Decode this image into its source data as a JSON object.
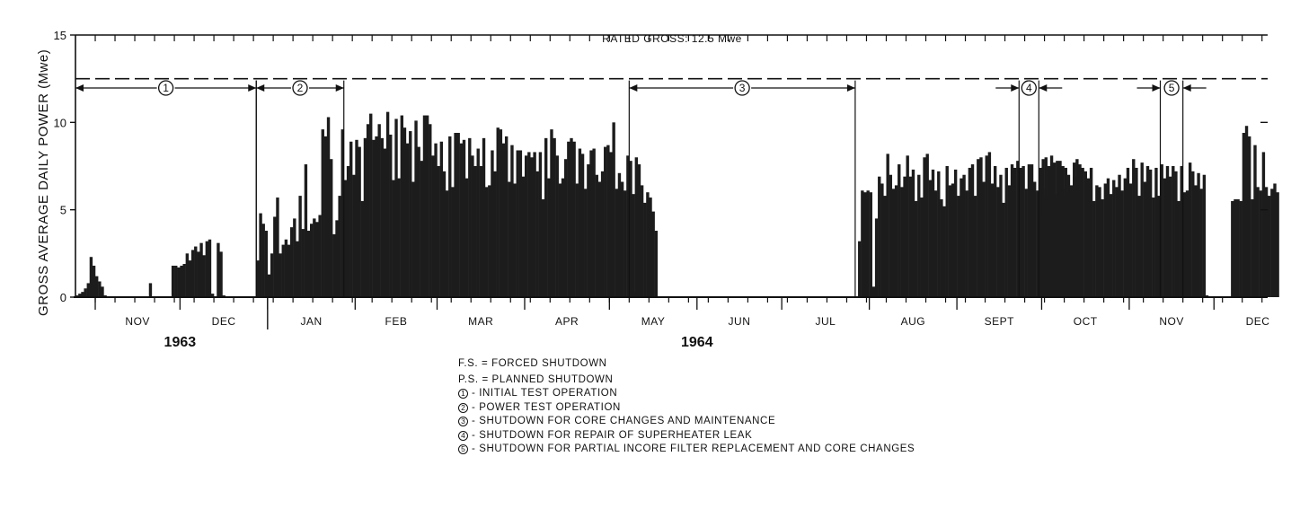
{
  "chart_data": {
    "type": "bar",
    "ylabel": "GROSS AVERAGE DAILY POWER (Mwe)",
    "ylim": [
      0,
      15
    ],
    "yticks": [
      0,
      5,
      10,
      15
    ],
    "rated_line": {
      "value": 12.5,
      "label": "RATED GROSS: 12.5 Mwe"
    },
    "months": [
      {
        "label": "NOV",
        "start_day": 0,
        "days": 30
      },
      {
        "label": "DEC",
        "start_day": 30,
        "days": 31
      },
      {
        "label": "JAN",
        "start_day": 61,
        "days": 31
      },
      {
        "label": "FEB",
        "start_day": 92,
        "days": 29
      },
      {
        "label": "MAR",
        "start_day": 121,
        "days": 31
      },
      {
        "label": "APR",
        "start_day": 152,
        "days": 30
      },
      {
        "label": "MAY",
        "start_day": 182,
        "days": 31
      },
      {
        "label": "JUN",
        "start_day": 213,
        "days": 30
      },
      {
        "label": "JUL",
        "start_day": 243,
        "days": 31
      },
      {
        "label": "AUG",
        "start_day": 274,
        "days": 31
      },
      {
        "label": "SEPT",
        "start_day": 305,
        "days": 30
      },
      {
        "label": "OCT",
        "start_day": 335,
        "days": 31
      },
      {
        "label": "NOV",
        "start_day": 366,
        "days": 30
      },
      {
        "label": "DEC",
        "start_day": 396,
        "days": 31
      }
    ],
    "years": [
      {
        "label": "1963",
        "day": 30
      },
      {
        "label": "1964",
        "day": 213
      }
    ],
    "x_start_day": -7,
    "x_end_day": 415,
    "periods": [
      {
        "label": "1",
        "start_day": -7,
        "end_day": 57
      },
      {
        "label": "2",
        "start_day": 57,
        "end_day": 88
      },
      {
        "label": "3",
        "start_day": 189,
        "end_day": 269
      },
      {
        "label": "4",
        "start_day": 327,
        "end_day": 334
      },
      {
        "label": "5",
        "start_day": 377,
        "end_day": 385
      }
    ],
    "daily_power": [
      {
        "start_day": -7,
        "values": [
          0.1,
          0.2,
          0.3,
          0.5,
          0.8,
          2.3,
          1.8,
          1.2,
          0.9,
          0.6,
          0.1,
          0,
          0,
          0,
          0,
          0,
          0,
          0,
          0,
          0,
          0,
          0,
          0,
          0,
          0,
          0,
          0.8,
          0,
          0,
          0,
          0,
          0,
          0,
          0,
          1.8,
          1.8,
          1.7,
          1.8,
          1.9,
          2.5,
          2.1,
          2.7,
          2.9,
          2.6,
          3.1,
          2.4,
          3.2,
          3.3,
          0.2,
          0,
          3.1,
          2.6,
          0.1,
          0,
          0,
          0,
          0,
          0,
          0,
          0,
          0,
          0,
          0
        ]
      },
      {
        "start_day": 57,
        "values": [
          2.1,
          4.8,
          4.2,
          3.8,
          1.3,
          2.5,
          4.6,
          5.7,
          2.5,
          3.0,
          3.3,
          3.0,
          4.0,
          4.5,
          3.2,
          5.8,
          3.9,
          7.6,
          3.8,
          4.2,
          4.5,
          4.3,
          4.7,
          9.6,
          9.2,
          10.3,
          7.9,
          3.6,
          4.4,
          5.8,
          9.6,
          6.7,
          7.5,
          8.9,
          7.0,
          9.0,
          8.6,
          5.5,
          9.1,
          9.9,
          10.5,
          9.0,
          9.2,
          9.9,
          9.1,
          8.5,
          10.6,
          9.3,
          6.7,
          10.2,
          6.8,
          10.4,
          9.7,
          8.8,
          9.5,
          6.6,
          10.1,
          8.6,
          7.8,
          10.4,
          10.4,
          9.9,
          8.1,
          8.8,
          7.5,
          8.9,
          7.2,
          6.1,
          9.2,
          6.3,
          9.4,
          9.4,
          8.8,
          9.0,
          6.8,
          9.1,
          8.1,
          7.5,
          8.5,
          7.5,
          9.1,
          6.3,
          6.4,
          8.4,
          7.2,
          9.7,
          9.6,
          8.8,
          9.2,
          6.6,
          8.7,
          6.5,
          8.4,
          8.4,
          6.9,
          8.1,
          8.3,
          8.0,
          8.3,
          7.2,
          8.3,
          5.6,
          9.1,
          6.8,
          9.6,
          9.1,
          8.1,
          6.5,
          6.8,
          7.9,
          8.9,
          9.1,
          8.9,
          6.5,
          8.5,
          8.2,
          6.2,
          7.6,
          8.4,
          8.5,
          7.0,
          6.6,
          7.2,
          8.6,
          8.7,
          8.3,
          10.0,
          6.2,
          7.1,
          6.6,
          6.1,
          8.1,
          7.8,
          5.9,
          8.0,
          7.6,
          6.4,
          5.4,
          6.0,
          5.7,
          4.9,
          3.8
        ]
      },
      {
        "start_day": 189,
        "values": [
          0.1,
          0.2,
          0.3,
          0,
          0,
          0,
          0,
          0,
          0,
          0,
          0,
          0,
          0,
          0,
          0,
          0,
          0,
          0,
          0,
          0,
          0,
          0,
          0,
          0,
          0,
          0,
          0,
          0,
          0,
          0,
          0,
          0,
          0,
          0,
          0,
          0,
          0,
          0,
          0,
          0,
          0,
          0,
          0,
          0,
          0,
          0,
          0,
          0,
          0,
          0,
          0,
          0,
          0,
          0,
          0,
          0,
          0,
          0,
          0,
          0,
          0,
          0,
          0,
          0,
          0,
          0,
          0,
          0,
          0,
          0,
          0,
          0,
          0,
          0,
          0,
          0,
          0,
          0,
          0,
          0,
          0
        ]
      },
      {
        "start_day": 270,
        "values": [
          3.2,
          6.1,
          6.0,
          6.1,
          6.0,
          0.6,
          4.5,
          6.9,
          6.5,
          5.8,
          8.2,
          7.0,
          6.2,
          6.4,
          7.6,
          6.3,
          6.9,
          8.1,
          6.9,
          7.3,
          5.5,
          7.0,
          5.7,
          8.0,
          8.2,
          6.7,
          7.3,
          6.1,
          7.2,
          5.6,
          5.2,
          7.5,
          6.4,
          6.5,
          7.3,
          5.8,
          6.8,
          7.0,
          6.1,
          7.4,
          7.6,
          5.8,
          7.9,
          8.0,
          6.6,
          8.1,
          8.3,
          6.5,
          7.5,
          6.3,
          7.0,
          5.4,
          7.4,
          6.4,
          7.6,
          7.4,
          7.8,
          7.4,
          7.5,
          6.2,
          7.6,
          7.6,
          6.6,
          6.1,
          7.4,
          7.9,
          8.0,
          7.5,
          8.1,
          7.7,
          7.8,
          7.8,
          7.5,
          7.4,
          7.0,
          6.1,
          7.7,
          7.9,
          7.6,
          0,
          0,
          0,
          0,
          0,
          0,
          0,
          0
        ]
      },
      {
        "start_day": 334,
        "values": [
          4.6,
          6.2,
          5.7,
          6.0,
          3.4,
          5.9,
          5.7,
          6.1,
          6.2,
          5.8,
          6.0,
          6.4,
          6.9,
          5.7,
          6.2,
          7.4,
          7.2,
          6.8,
          7.4,
          5.5,
          6.4,
          6.3,
          5.6,
          6.5,
          6.8,
          5.9,
          6.7,
          6.3,
          7.0,
          6.1,
          6.8,
          7.4,
          6.5,
          7.9,
          7.4,
          5.8,
          7.7,
          6.6,
          7.5,
          7.3,
          5.7,
          7.4,
          5.8,
          7.6,
          6.8,
          7.5,
          6.9,
          7.5,
          7.2,
          5.5,
          7.5,
          6.0,
          6.1,
          7.7,
          7.2,
          6.4,
          7.1,
          6.2,
          7.0
        ]
      },
      {
        "start_day": 393,
        "values": [
          0.1,
          0,
          0,
          0,
          0,
          0,
          0,
          0,
          0,
          5.5,
          5.6,
          5.6,
          5.5,
          9.4,
          9.8,
          9.2,
          5.6,
          8.7,
          6.3,
          6.1,
          8.3,
          6.3,
          5.8,
          6.2,
          6.5,
          6.0
        ]
      }
    ]
  },
  "legend": {
    "fs": "F.S. = FORCED SHUTDOWN",
    "ps": "P.S. = PLANNED SHUTDOWN",
    "items": [
      {
        "num": "1",
        "text": "- INITIAL TEST OPERATION"
      },
      {
        "num": "2",
        "text": "- POWER TEST OPERATION"
      },
      {
        "num": "3",
        "text": "- SHUTDOWN FOR CORE CHANGES AND MAINTENANCE"
      },
      {
        "num": "4",
        "text": "- SHUTDOWN FOR REPAIR OF SUPERHEATER LEAK"
      },
      {
        "num": "5",
        "text": "- SHUTDOWN FOR PARTIAL INCORE FILTER REPLACEMENT AND CORE CHANGES"
      }
    ]
  },
  "colors": {
    "ink": "#111111",
    "bars": "#1c1c1c",
    "background": "#ffffff"
  }
}
